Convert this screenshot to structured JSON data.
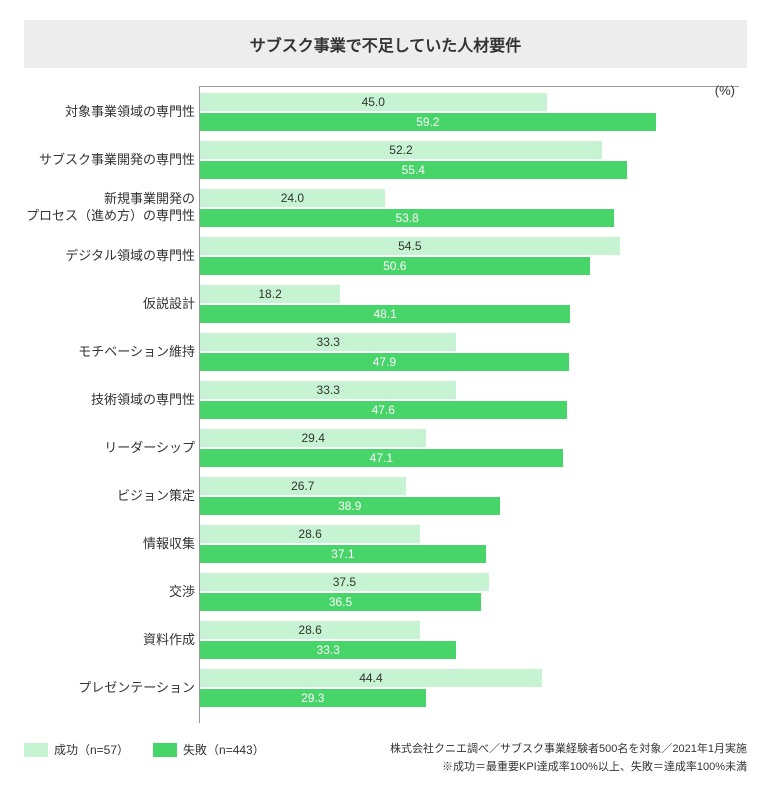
{
  "title": "サブスク事業で不足していた人材要件",
  "unit_label": "(%)",
  "chart": {
    "type": "bar",
    "orientation": "horizontal",
    "x_max": 70,
    "series": {
      "success": {
        "color": "#c6f4d2",
        "text_color": "#333333",
        "value_position": "outside"
      },
      "failure": {
        "color": "#47d468",
        "text_color": "#ffffff",
        "value_position": "inside"
      }
    },
    "categories": [
      {
        "label": "対象事業領域の専門性",
        "success": 45.0,
        "failure": 59.2
      },
      {
        "label": "サブスク事業開発の専門性",
        "success": 52.2,
        "failure": 55.4
      },
      {
        "label": "新規事業開発の\nプロセス（進め方）の専門性",
        "success": 24.0,
        "failure": 53.8
      },
      {
        "label": "デジタル領域の専門性",
        "success": 54.5,
        "failure": 50.6
      },
      {
        "label": "仮説設計",
        "success": 18.2,
        "failure": 48.1
      },
      {
        "label": "モチベーション維持",
        "success": 33.3,
        "failure": 47.9
      },
      {
        "label": "技術領域の専門性",
        "success": 33.3,
        "failure": 47.6
      },
      {
        "label": "リーダーシップ",
        "success": 29.4,
        "failure": 47.1
      },
      {
        "label": "ビジョン策定",
        "success": 26.7,
        "failure": 38.9
      },
      {
        "label": "情報収集",
        "success": 28.6,
        "failure": 37.1
      },
      {
        "label": "交渉",
        "success": 37.5,
        "failure": 36.5
      },
      {
        "label": "資料作成",
        "success": 28.6,
        "failure": 33.3
      },
      {
        "label": "プレゼンテーション",
        "success": 44.4,
        "failure": 29.3
      }
    ]
  },
  "legend": {
    "success": "成功（n=57）",
    "failure": "失敗（n=443）"
  },
  "footnote1": "株式会社クニエ調べ／サブスク事業経験者500名を対象／2021年1月実施",
  "footnote2": "※成功＝最重要KPI達成率100%以上、失敗＝達成率100%未満",
  "title_fontsize": 16,
  "label_fontsize": 13,
  "value_fontsize": 12,
  "background_color": "#ffffff",
  "title_background": "#ededed",
  "border_color": "#999999"
}
